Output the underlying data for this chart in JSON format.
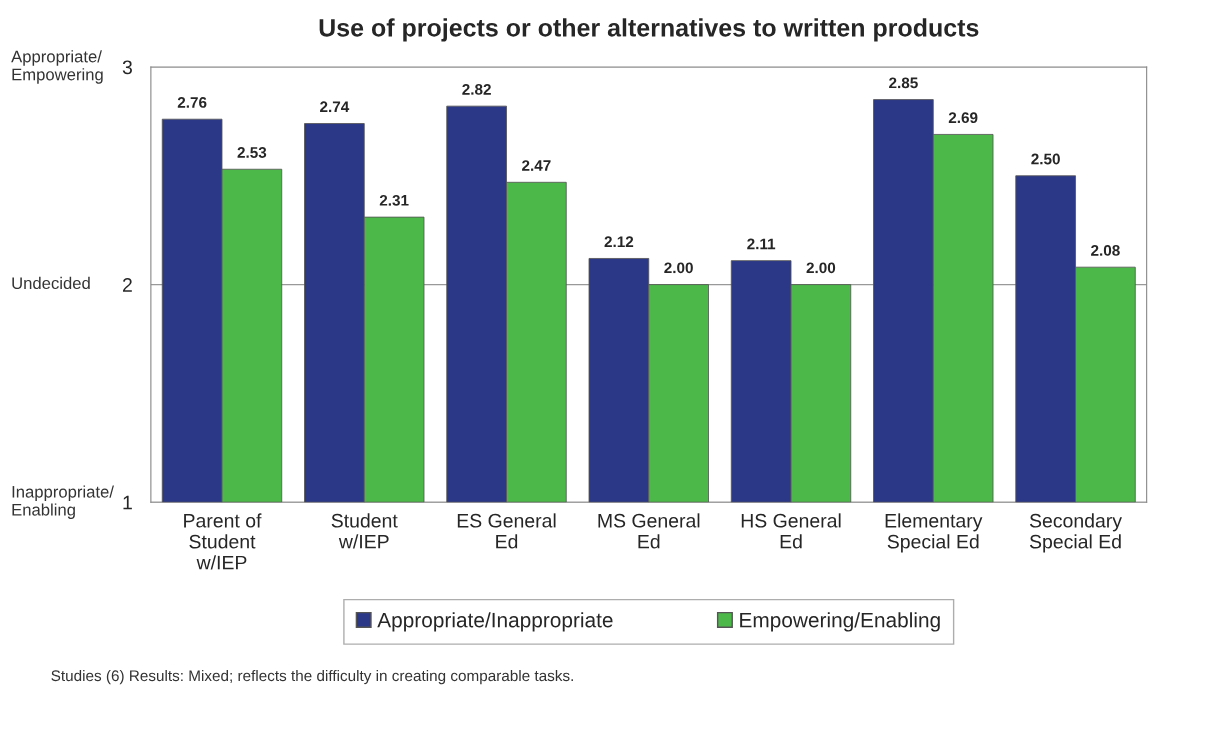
{
  "chart_data": {
    "type": "bar",
    "title": "Use of projects or other alternatives to written products",
    "categories": [
      "Parent of\nStudent\nw/IEP",
      "Student\nw/IEP",
      "ES General\nEd",
      "MS General\nEd",
      "HS General\nEd",
      "Elementary\nSpecial Ed",
      "Secondary\nSpecial Ed"
    ],
    "series": [
      {
        "name": "Appropriate/Inappropriate",
        "color": "#2b3888",
        "values": [
          2.76,
          2.74,
          2.82,
          2.12,
          2.11,
          2.85,
          2.5
        ],
        "value_labels": [
          "2.76",
          "2.74",
          "2.82",
          "2.12",
          "2.11",
          "2.85",
          "2.50"
        ]
      },
      {
        "name": "Empowering/Enabling",
        "color": "#4cb84a",
        "values": [
          2.53,
          2.31,
          2.47,
          2.0,
          2.0,
          2.69,
          2.08
        ],
        "value_labels": [
          "2.53",
          "2.31",
          "2.47",
          "2.00",
          "2.00",
          "2.69",
          "2.08"
        ]
      }
    ],
    "ylim": [
      1,
      3
    ],
    "yticks": [
      1,
      2,
      3
    ],
    "grid": "y",
    "legend": "bottom",
    "annotations": [
      "Appropriate/\nEmpowering",
      "Undecided",
      "Inappropriate/\nEnabling",
      "Studies (6) Results: Mixed; reflects the difficulty in creating comparable tasks."
    ]
  }
}
